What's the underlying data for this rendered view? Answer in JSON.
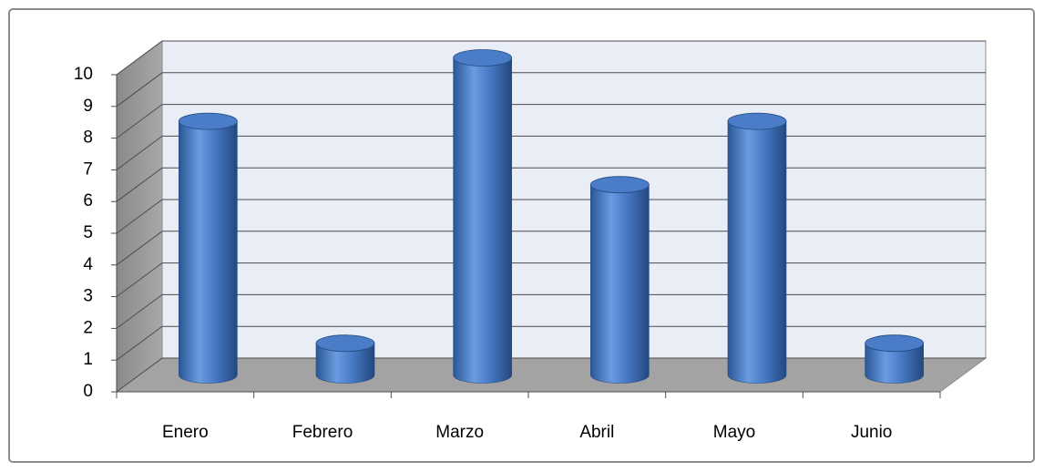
{
  "chart_data": {
    "type": "bar3d",
    "categories": [
      "Enero",
      "Febrero",
      "Marzo",
      "Abril",
      "Mayo",
      "Junio"
    ],
    "values": [
      8,
      1,
      10,
      6,
      8,
      1
    ],
    "color": "#4a7cc8",
    "ylim": [
      0,
      10
    ],
    "yticks": [
      0,
      1,
      2,
      3,
      4,
      5,
      6,
      7,
      8,
      9,
      10
    ],
    "grid": true
  }
}
